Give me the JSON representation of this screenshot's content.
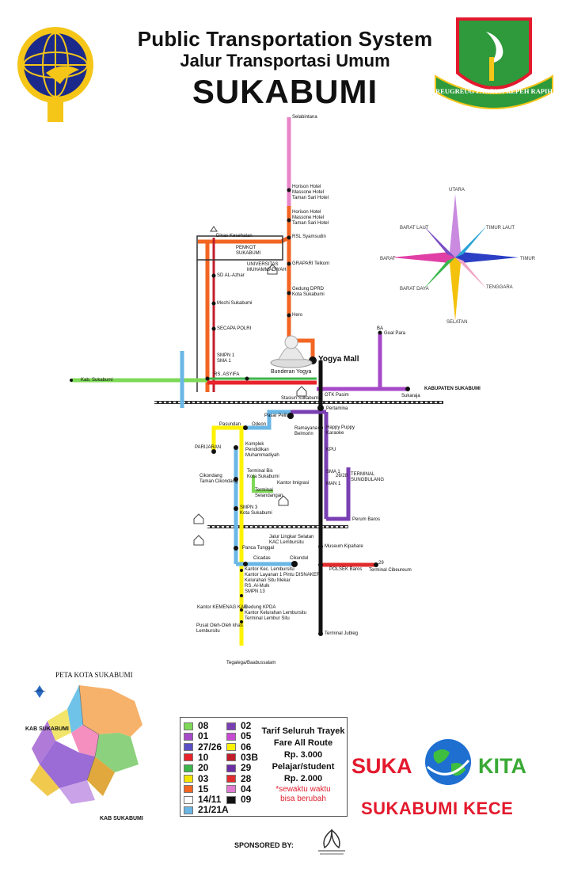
{
  "header": {
    "title_en": "Public Transportation System",
    "title_id": "Jalur Transportasi Umum",
    "city": "SUKABUMI"
  },
  "emblem": {
    "motto": "REUGREUG PAGEUH REPEH RAPIH"
  },
  "compass": {
    "utara": "UTARA",
    "barat_laut": "BARAT LAUT",
    "timur_laut": "TIMUR LAUT",
    "barat": "BARAT",
    "timur": "TIMUR",
    "barat_daya": "BARAT DAYA",
    "tenggara": "TENGGARA",
    "selatan": "SELATAN"
  },
  "places": {
    "selabintana": "Selabintana",
    "hotel1": "Horison Hotel\nMassone Hotel\nTaman Sari Hotel",
    "hotel2": "Horison Hotel\nMassone Hotel\nTaman Sari Hotel",
    "rsl": "RSL Syamsudin",
    "grapari": "GRAPARI Telkom",
    "dprd": "Gedung DPRD\nKota Sukabumi",
    "hero": "Hero",
    "dinkes": "Dinas Kesehatan",
    "pemkot": "PEMKOT\nSUKABUMI",
    "univ": "UNIVERSITAS\nMUHAMMADIYAH",
    "sd": "SD AL-Azhar",
    "mochi": "Mochi Sukabumi",
    "secapa": "SECAPA POLRI",
    "smpn": "SMPN 1\nSMA 1",
    "asyfa": "RS. ASYIFA",
    "yogya": "Yogya Mall",
    "bunderan": "Bunderan Yogya",
    "kab_sukabumi_w": "Kab. Sukabumi",
    "kab_sukabumi_e": "KABUPATEN SUKABUMI",
    "sukaraja": "Sukaraja",
    "goal_para": "Goal Para",
    "stasiun": "Stasiun Sukabumi",
    "otk": "OTK Pasim",
    "pertamina": "Pertamina",
    "pasar_pelita": "Pasar Pelita",
    "ramayana": "Ramayana\nBelmorin",
    "happy": "Happy Puppy\nKaraoke",
    "pasundan": "Pasundan",
    "odeon": "Odeon",
    "parungkuda": "PARIJARAN",
    "muhammadiyah": "Komplek\nPendidikan\nMuhammadiyah",
    "kpu": "KPU",
    "sma1": "SMA 1",
    "man1": "MAN 1",
    "terminal_sungbulang": "TERMINAL\nSUNGBULANG",
    "cikondang": "Cikondang\nTaman Cikondang",
    "terminal_kota": "Terminal Bis\nKota Sukabumi",
    "imigrasi": "Kantor Imigrasi",
    "terminal_sel": "Terminal\nSelandangan",
    "smpn3": "SMPN 3\nKota Sukabumi",
    "perum_baros": "Perum Baros",
    "lingkar": "Jalur Lingkar Selatan\nKAC Lembursitu",
    "pancatunggal": "Panca Tunggal",
    "museum": "Museum Kipahare",
    "cicadas": "Cicadas",
    "cikundul": "Cikundul",
    "polsek": "POLSEK Baros",
    "terminal_cibeureum": "Terminal Cibeureum",
    "kecamatan": "Kantor Kec. Lembursitu\nKantor Layanan 1 Pintu DISNAKER\nKelurahan Situ Mekar\nRS. Al-Mulk\nSMPN 13",
    "kemenag": "Kantor KEMENAG KAB",
    "kpda": "Gedung KPDA\nKantor Kelurahan Lembursitu\nTerminal Lembur Situ",
    "oleh": "Pusat Oleh-Oleh khas\nLembursitu",
    "tegal": "Tegalega/Baabussalam",
    "terminal_jubleg": "Terminal Jubleg",
    "no_ba": "BA",
    "no_29": "29",
    "no_2628": "26/28"
  },
  "inset_map": {
    "title": "PETA KOTA SUKABUMI",
    "kab1": "KAB SUKABUMI",
    "kab2": "KAB SUKABUMI"
  },
  "legend": {
    "left": [
      {
        "code": "08",
        "color": "#7ed957"
      },
      {
        "code": "01",
        "color": "#a64ac9"
      },
      {
        "code": "27/26",
        "color": "#5b4fc6"
      },
      {
        "code": "10",
        "color": "#e8232b"
      },
      {
        "code": "20",
        "color": "#3cb54a"
      },
      {
        "code": "03",
        "color": "#f3e500"
      },
      {
        "code": "15",
        "color": "#f26522"
      },
      {
        "code": "14/11",
        "color": "#ffffff"
      },
      {
        "code": "21/21A",
        "color": "#6ab7e6"
      }
    ],
    "right": [
      {
        "code": "02",
        "color": "#7a3fb3"
      },
      {
        "code": "05",
        "color": "#c64bd1"
      },
      {
        "code": "06",
        "color": "#fff200"
      },
      {
        "code": "03B",
        "color": "#c11d2a"
      },
      {
        "code": "29",
        "color": "#6a2fa5"
      },
      {
        "code": "28",
        "color": "#e02c2c"
      },
      {
        "code": "04",
        "color": "#e07ad0"
      },
      {
        "code": "09",
        "color": "#111111"
      }
    ],
    "fare_title": "Tarif Seluruh Trayek",
    "fare_title_en": "Fare All Route",
    "fare_general": "Rp. 3.000",
    "fare_student_label": "Pelajar/student",
    "fare_student": "Rp. 2.000",
    "note": "*sewaktu waktu\nbisa berubah"
  },
  "brand": {
    "suka": "SUKA",
    "kita": "KITA",
    "tagline": "SUKABUMI KECE"
  },
  "footer": {
    "sponsored": "SPONSORED BY:"
  }
}
